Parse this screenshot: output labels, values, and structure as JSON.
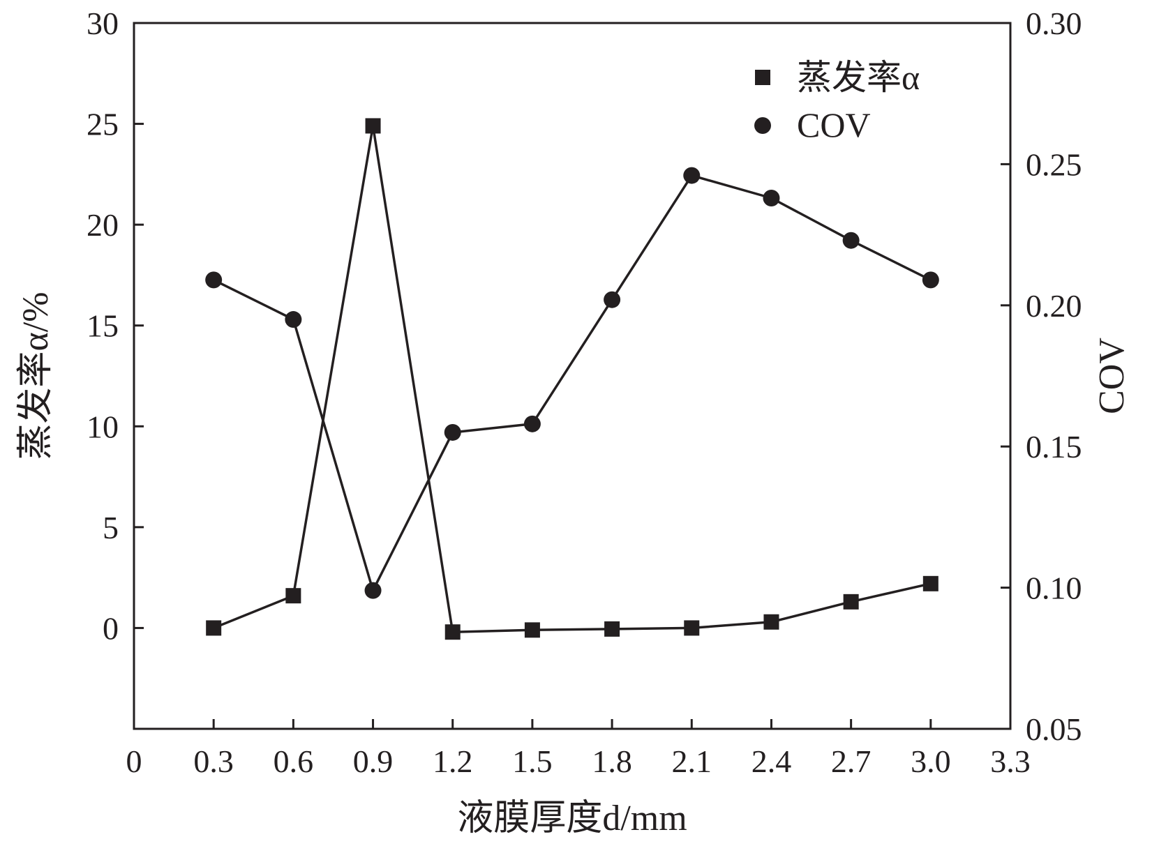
{
  "chart_data": {
    "type": "line",
    "xlabel": "液膜厚度d/mm",
    "ylabel_left": "蒸发率α/%",
    "ylabel_right": "COV",
    "xlim": [
      0,
      3.3
    ],
    "ylim_left": [
      -5,
      30
    ],
    "ylim_right": [
      0.05,
      0.3
    ],
    "x_ticks": [
      "0",
      "0.3",
      "0.6",
      "0.9",
      "1.2",
      "1.5",
      "1.8",
      "2.1",
      "2.4",
      "2.7",
      "3.0",
      "3.3"
    ],
    "y_left_ticks": [
      "0",
      "5",
      "10",
      "15",
      "20",
      "25",
      "30"
    ],
    "y_right_ticks": [
      "0.05",
      "0.10",
      "0.15",
      "0.20",
      "0.25",
      "0.30"
    ],
    "legend_position": "top-right",
    "grid": false,
    "series": [
      {
        "name": "蒸发率α",
        "axis": "left",
        "marker": "square",
        "x": [
          0.3,
          0.6,
          0.9,
          1.2,
          1.5,
          1.8,
          2.1,
          2.4,
          2.7,
          3.0
        ],
        "values": [
          0.0,
          1.6,
          24.9,
          -0.2,
          -0.1,
          -0.05,
          0.0,
          0.3,
          1.3,
          2.2
        ]
      },
      {
        "name": "COV",
        "axis": "right",
        "marker": "circle",
        "x": [
          0.3,
          0.6,
          0.9,
          1.2,
          1.5,
          1.8,
          2.1,
          2.4,
          2.7,
          3.0
        ],
        "values": [
          0.209,
          0.195,
          0.099,
          0.155,
          0.158,
          0.202,
          0.246,
          0.238,
          0.223,
          0.209
        ]
      }
    ]
  }
}
